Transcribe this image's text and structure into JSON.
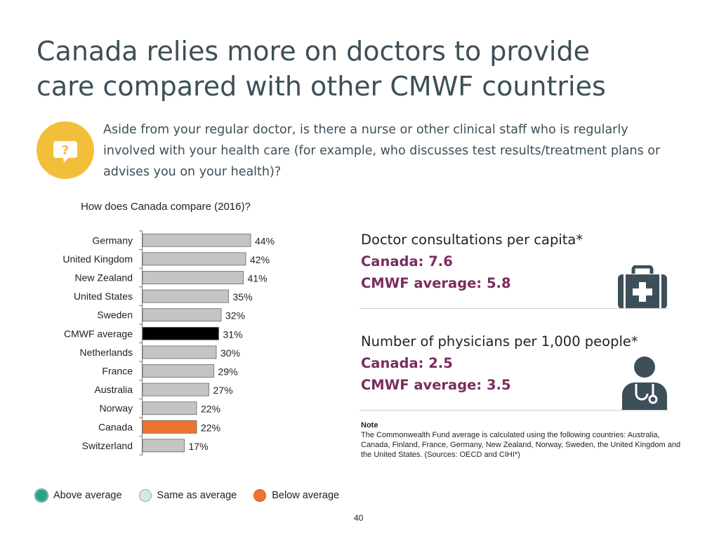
{
  "header": {
    "title_line1": "Canada relies more on doctors to provide",
    "title_line2": "care compared with other CMWF countries"
  },
  "question": {
    "icon": "question-bubble-icon",
    "text": "Aside from your regular doctor, is there a nurse or other clinical staff who is regularly involved with your health care (for example, who discusses test results/treatment plans or advises you on your health)?"
  },
  "chart_data": {
    "type": "bar",
    "orientation": "horizontal",
    "title": "How does Canada compare (2016)?",
    "categories": [
      "Germany",
      "United Kingdom",
      "New Zealand",
      "United States",
      "Sweden",
      "CMWF average",
      "Netherlands",
      "France",
      "Australia",
      "Norway",
      "Canada",
      "Switzerland"
    ],
    "values": [
      44,
      42,
      41,
      35,
      32,
      31,
      30,
      29,
      27,
      22,
      22,
      17
    ],
    "value_labels": [
      "44%",
      "42%",
      "41%",
      "35%",
      "32%",
      "31%",
      "30%",
      "29%",
      "27%",
      "22%",
      "22%",
      "17%"
    ],
    "unit": "%",
    "xlim": [
      0,
      100
    ],
    "highlight": {
      "CMWF average": "#000000",
      "Canada": "#ee7330"
    },
    "default_color": "#c4c4c4",
    "grid": false,
    "legend": "bottom-left"
  },
  "stats": [
    {
      "title": "Doctor consultations per capita*",
      "canada": "Canada: 7.6",
      "average": "CMWF average: 5.8",
      "icon": "medical-kit-icon"
    },
    {
      "title": "Number of physicians per 1,000 people*",
      "canada": "Canada: 2.5",
      "average": "CMWF average: 3.5",
      "icon": "doctor-stethoscope-icon"
    }
  ],
  "note": {
    "heading": "Note",
    "text": "The Commonwealth Fund average is calculated using the following countries: Australia, Canada, Finland, France, Germany, New Zealand, Norway, Sweden, the United Kingdom and the United States. (Sources: OECD and CIHI*)"
  },
  "legend": {
    "items": [
      {
        "label": "Above average",
        "color": "#2b9e8f"
      },
      {
        "label": "Same as average",
        "color": "#d5e8e3"
      },
      {
        "label": "Below average",
        "color": "#ee7330"
      }
    ]
  },
  "footer": {
    "page_number": "40"
  },
  "colors": {
    "title": "#3d4f58",
    "accent": "#7b2c5f",
    "icon_dark": "#3d4f58",
    "icon_yellow": "#f3be3a"
  }
}
